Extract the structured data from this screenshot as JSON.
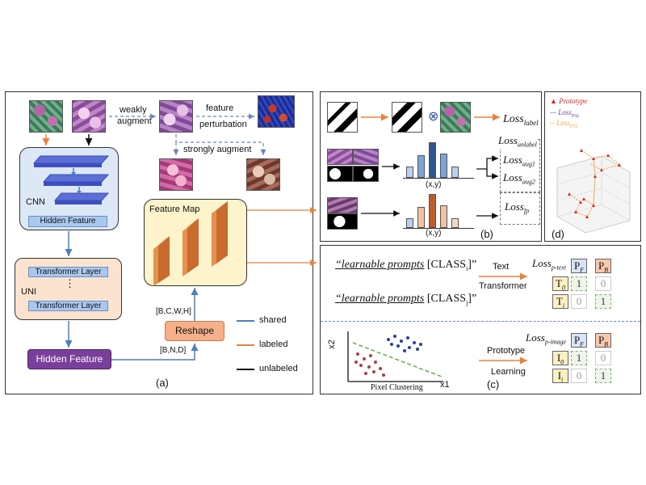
{
  "panel_a": {
    "caption": "(a)",
    "weakly": "weakly",
    "augment": "augment",
    "feature": "feature",
    "perturbation": "perturbation",
    "strongly_augment": "strongly augment",
    "cnn": "CNN",
    "hidden_feature_cnn": "Hidden Feature",
    "transformer_layer_1": "Transformer   Layer",
    "vdots": "⋮",
    "uni": "UNI",
    "transformer_layer_2": "Transformer   Layer",
    "hidden_feature": "Hidden Feature",
    "feature_map": "Feature Map",
    "reshape": "Reshape",
    "dims_bcwh": "[B,C,W,H]",
    "dims_bnd": "[B,N,D]",
    "legend": [
      {
        "label": "shared",
        "color": "#4a7fc1"
      },
      {
        "label": "labeled",
        "color": "#e8823a"
      },
      {
        "label": "unlabeled",
        "color": "#111111"
      }
    ]
  },
  "panel_b": {
    "caption": "(b)",
    "otimes": "⊗",
    "loss_label": "Loss",
    "loss_label_sub": "label",
    "loss_unlabel": "Loss",
    "loss_unlabel_sub": "unlabel",
    "loss_aug1": "Loss",
    "loss_aug1_sub": "aug1",
    "loss_aug2": "Loss",
    "loss_aug2_sub": "aug2",
    "loss_fp": "Loss",
    "loss_fp_sub": "fp",
    "xy_1": "(x,y)",
    "xy_2": "(x,y)"
  },
  "panel_c": {
    "caption": "(c)",
    "prompt_1_italic": "“learnable prompts",
    "prompt_1_class": " [CLASS",
    "prompt_1_sub": "i",
    "prompt_1_end": "]”",
    "prompt_2_italic": "“learnable prompts",
    "prompt_2_class": " [CLASS",
    "prompt_2_sub": "j",
    "prompt_2_end": "]”",
    "text": "Text",
    "transformer": "Transformer",
    "loss_ptext": "Loss",
    "loss_ptext_sub": "p-text",
    "loss_pimage": "Loss",
    "loss_pimage_sub": "p-image",
    "pf": "P",
    "pf_sub": "F",
    "pb": "P",
    "pb_sub": "B",
    "t0": "T",
    "t0_sub": "0",
    "ti": "T",
    "ti_sub": "i",
    "i0": "I",
    "i0_sub": "0",
    "ii": "I",
    "ii_sub": "i",
    "one": "1",
    "zero": "0",
    "x2": "x2",
    "x1": "x1",
    "pixel_clustering": "Pixel Clustering",
    "prototype": "Prototype",
    "learning": "Learning"
  },
  "panel_d": {
    "caption": "(d)",
    "legend": [
      {
        "label": "Prototype",
        "color": "#d62728"
      },
      {
        "label": "Loss",
        "sub": "PAL",
        "color": "#6a3d9a"
      },
      {
        "label": "Loss",
        "sub": "PTL",
        "color": "#f5a742"
      }
    ]
  },
  "colors": {
    "shared": "#4a7fc1",
    "labeled": "#e8823a",
    "unlabeled": "#111111",
    "cnn_bg": "#dde8f7",
    "uni_bg": "#fbe3cf",
    "feature_map_bg": "#fdf4cc",
    "hidden_feature_bg": "#7a3f9a",
    "reshape_bg": "#f5b08a"
  }
}
